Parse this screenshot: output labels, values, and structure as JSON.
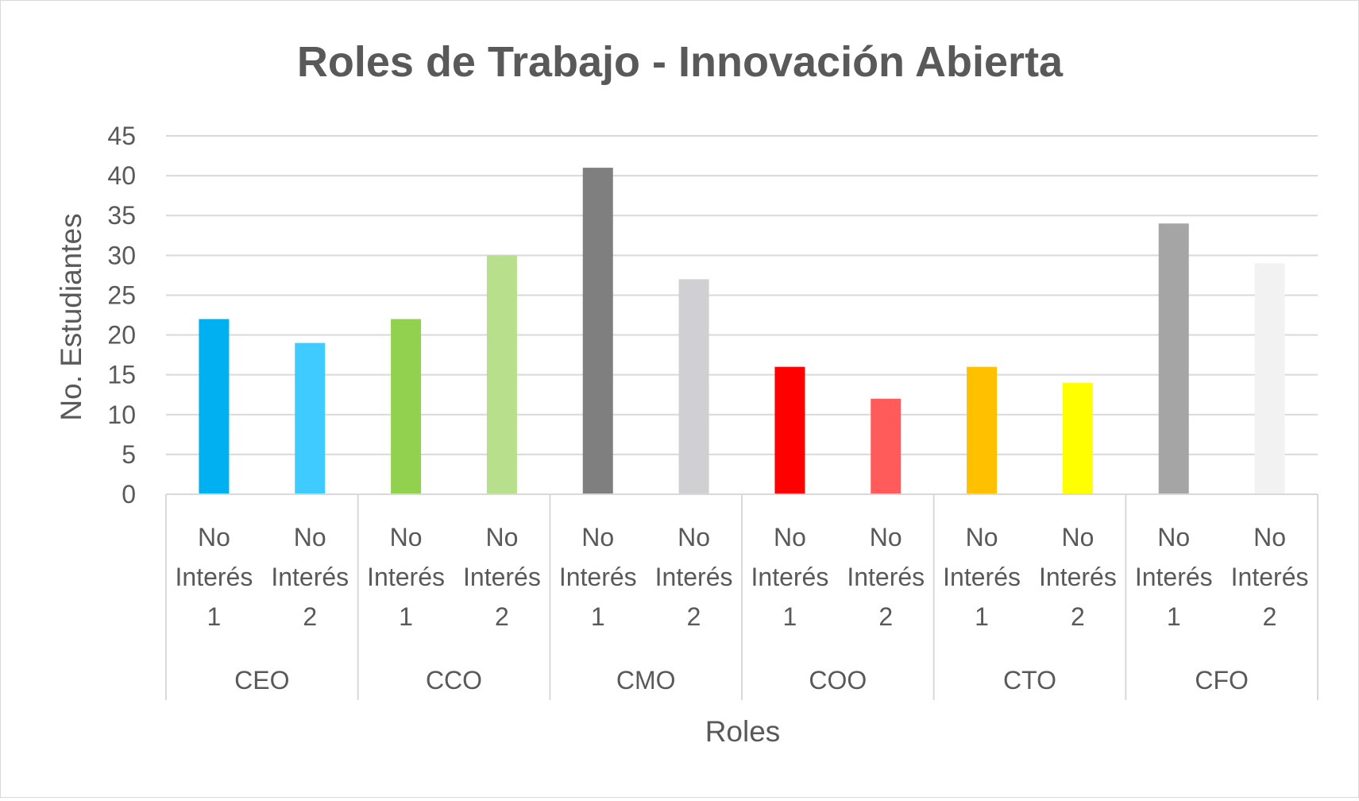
{
  "chart_data": {
    "type": "bar",
    "title": "Roles de Trabajo - Innovación Abierta",
    "xlabel": "Roles",
    "ylabel": "No. Estudiantes",
    "ylim": [
      0,
      45
    ],
    "yticks": [
      0,
      5,
      10,
      15,
      20,
      25,
      30,
      35,
      40,
      45
    ],
    "grid": true,
    "groups": [
      "CEO",
      "CCO",
      "CMO",
      "COO",
      "CTO",
      "CFO"
    ],
    "categories": [
      {
        "group": "CEO",
        "label": [
          "No",
          "Interés",
          "1"
        ],
        "value": 22,
        "color": "#00b0f0"
      },
      {
        "group": "CEO",
        "label": [
          "No",
          "Interés",
          "2"
        ],
        "value": 19,
        "color": "#3fcbff"
      },
      {
        "group": "CCO",
        "label": [
          "No",
          "Interés",
          "1"
        ],
        "value": 22,
        "color": "#92d050"
      },
      {
        "group": "CCO",
        "label": [
          "No",
          "Interés",
          "2"
        ],
        "value": 30,
        "color": "#b8e08c"
      },
      {
        "group": "CMO",
        "label": [
          "No",
          "Interés",
          "1"
        ],
        "value": 41,
        "color": "#7f7f7f"
      },
      {
        "group": "CMO",
        "label": [
          "No",
          "Interés",
          "2"
        ],
        "value": 27,
        "color": "#d0cfd1"
      },
      {
        "group": "COO",
        "label": [
          "No",
          "Interés",
          "1"
        ],
        "value": 16,
        "color": "#ff0000"
      },
      {
        "group": "COO",
        "label": [
          "No",
          "Interés",
          "2"
        ],
        "value": 12,
        "color": "#ff5b5b"
      },
      {
        "group": "CTO",
        "label": [
          "No",
          "Interés",
          "1"
        ],
        "value": 16,
        "color": "#ffc000"
      },
      {
        "group": "CTO",
        "label": [
          "No",
          "Interés",
          "2"
        ],
        "value": 14,
        "color": "#ffff00"
      },
      {
        "group": "CFO",
        "label": [
          "No",
          "Interés",
          "1"
        ],
        "value": 34,
        "color": "#a5a5a5"
      },
      {
        "group": "CFO",
        "label": [
          "No",
          "Interés",
          "2"
        ],
        "value": 29,
        "color": "#f2f2f2"
      }
    ],
    "colors": {
      "grid": "#d9d9d9",
      "axis": "#d9d9d9",
      "text": "#595959"
    }
  }
}
